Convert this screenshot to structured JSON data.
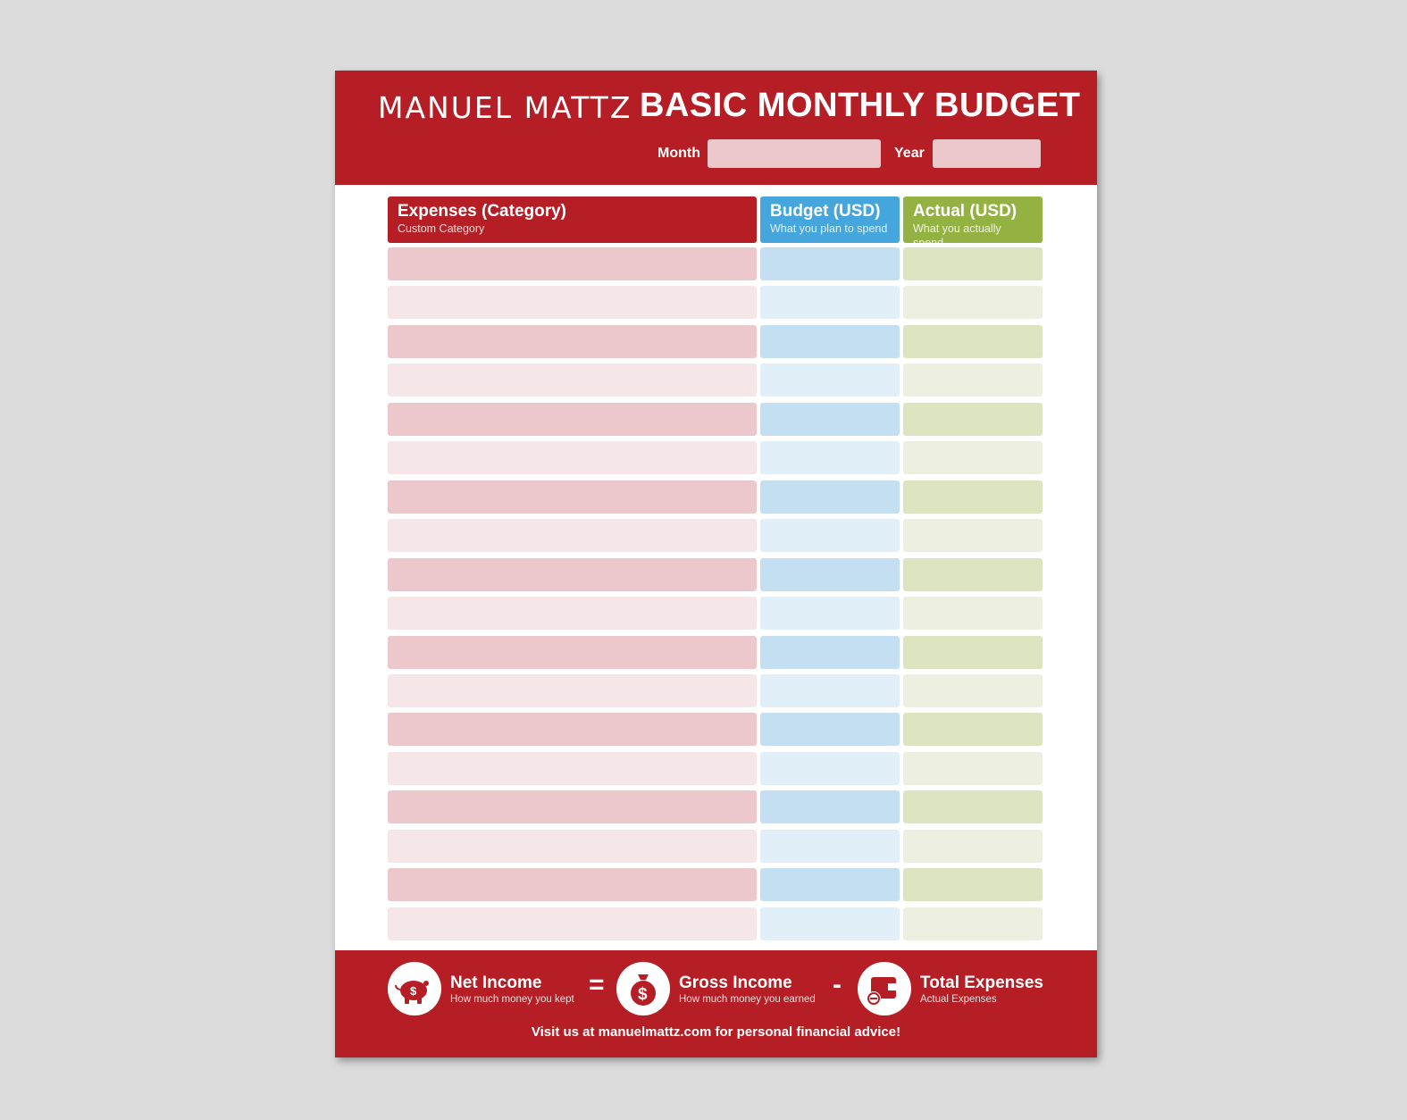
{
  "header": {
    "brand": "MANUEL MATTZ",
    "title": "BASIC MONTHLY BUDGET",
    "month_label": "Month",
    "year_label": "Year"
  },
  "columns": [
    {
      "title": "Expenses (Category)",
      "subtitle": "Custom Category",
      "color": "#b51e25"
    },
    {
      "title": "Budget (USD)",
      "subtitle": "What you plan to spend",
      "color": "#45a5dd"
    },
    {
      "title": "Actual (USD)",
      "subtitle": "What you actually spend",
      "color": "#94b241"
    }
  ],
  "row_colors": {
    "category_dark": "#ecc8cc",
    "category_light": "#f5e6e7",
    "budget_dark": "#c3dff1",
    "budget_light": "#e1f0f8",
    "actual_dark": "#dde4c0",
    "actual_light": "#edf0e0"
  },
  "row_count": 18,
  "footer": {
    "net_income": {
      "title": "Net Income",
      "subtitle": "How much money you kept",
      "icon": "piggy-bank-icon"
    },
    "equals": "=",
    "gross_income": {
      "title": "Gross Income",
      "subtitle": "How much money you earned",
      "icon": "money-bag-icon"
    },
    "minus": "-",
    "total_expenses": {
      "title": "Total Expenses",
      "subtitle": "Actual Expenses",
      "icon": "wallet-icon"
    },
    "visit": "Visit us at manuelmattz.com for personal financial advice!"
  }
}
